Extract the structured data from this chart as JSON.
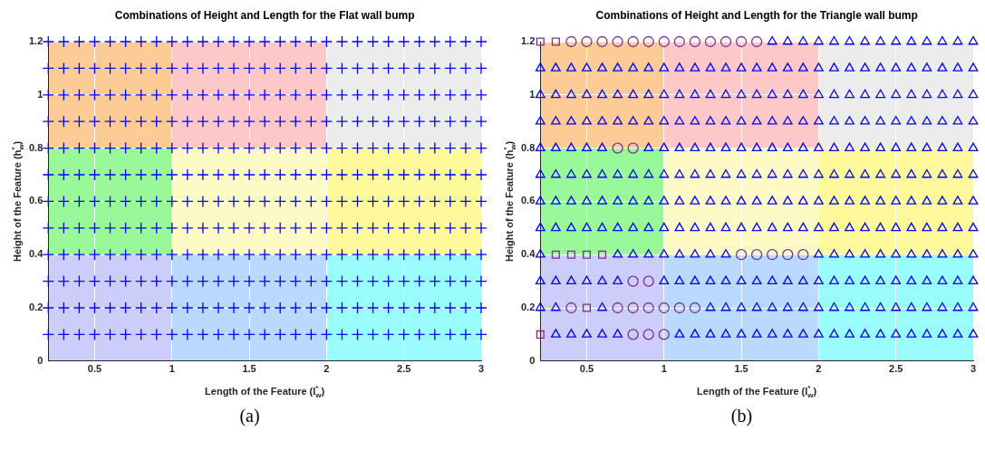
{
  "chart_data": [
    {
      "type": "scatter",
      "title": "Combinations of Height and Length for the Flat wall bump",
      "xlabel": "Length of the Feature (l$^{*}$$_{w}$)",
      "ylabel": "Height of the Feature (h$^{*}$$_{w}$)",
      "marker": "cross",
      "grid": true,
      "legend": false,
      "xlim": [
        0.2,
        3
      ],
      "xticks": [
        0.5,
        1,
        1.5,
        2,
        2.5,
        3
      ],
      "ylim": [
        0,
        1.2
      ],
      "yticks": [
        0,
        0.2,
        0.4,
        0.6,
        0.8,
        1,
        1.2
      ],
      "annotations": [
        "(a)"
      ],
      "x": [
        0.2,
        0.3,
        0.4,
        0.5,
        0.6,
        0.7,
        0.8,
        0.9,
        1,
        1.1,
        1.2,
        1.3,
        1.4,
        1.5,
        1.6,
        1.7,
        1.8,
        1.9,
        2,
        2.1,
        2.2,
        2.3,
        2.4,
        2.5,
        2.6,
        2.7,
        2.8,
        2.9,
        3
      ],
      "series": [
        {
          "color": "#0000ff",
          "values": [
            1.2,
            1.2,
            1.2,
            1.2,
            1.2,
            1.2,
            1.2,
            1.2,
            1.2,
            1.2,
            1.2,
            1.2,
            1.2,
            1.2,
            1.2,
            1.2,
            1.2,
            1.2,
            1.2,
            1.2,
            1.2,
            1.2,
            1.2,
            1.2,
            1.2,
            1.2,
            1.2,
            1.2,
            1.2
          ]
        },
        {
          "color": "#0000ff",
          "values": [
            1.1,
            1.1,
            1.1,
            1.1,
            1.1,
            1.1,
            1.1,
            1.1,
            1.1,
            1.1,
            1.1,
            1.1,
            1.1,
            1.1,
            1.1,
            1.1,
            1.1,
            1.1,
            1.1,
            1.1,
            1.1,
            1.1,
            1.1,
            1.1,
            1.1,
            1.1,
            1.1,
            1.1,
            1.1
          ]
        },
        {
          "color": "#0000ff",
          "values": [
            1,
            1,
            1,
            1,
            1,
            1,
            1,
            1,
            1,
            1,
            1,
            1,
            1,
            1,
            1,
            1,
            1,
            1,
            1,
            1,
            1,
            1,
            1,
            1,
            1,
            1,
            1,
            1,
            1
          ]
        },
        {
          "color": "#0000ff",
          "values": [
            0.9,
            0.9,
            0.9,
            0.9,
            0.9,
            0.9,
            0.9,
            0.9,
            0.9,
            0.9,
            0.9,
            0.9,
            0.9,
            0.9,
            0.9,
            0.9,
            0.9,
            0.9,
            0.9,
            0.9,
            0.9,
            0.9,
            0.9,
            0.9,
            0.9,
            0.9,
            0.9,
            0.9,
            0.9
          ]
        },
        {
          "color": "#0000ff",
          "values": [
            0.8,
            0.8,
            0.8,
            0.8,
            0.8,
            0.8,
            0.8,
            0.8,
            0.8,
            0.8,
            0.8,
            0.8,
            0.8,
            0.8,
            0.8,
            0.8,
            0.8,
            0.8,
            0.8,
            0.8,
            0.8,
            0.8,
            0.8,
            0.8,
            0.8,
            0.8,
            0.8,
            0.8,
            0.8
          ]
        },
        {
          "color": "#0000ff",
          "values": [
            0.7,
            0.7,
            0.7,
            0.7,
            0.7,
            0.7,
            0.7,
            0.7,
            0.7,
            0.7,
            0.7,
            0.7,
            0.7,
            0.7,
            0.7,
            0.7,
            0.7,
            0.7,
            0.7,
            0.7,
            0.7,
            0.7,
            0.7,
            0.7,
            0.7,
            0.7,
            0.7,
            0.7,
            0.7
          ]
        },
        {
          "color": "#0000ff",
          "values": [
            0.6,
            0.6,
            0.6,
            0.6,
            0.6,
            0.6,
            0.6,
            0.6,
            0.6,
            0.6,
            0.6,
            0.6,
            0.6,
            0.6,
            0.6,
            0.6,
            0.6,
            0.6,
            0.6,
            0.6,
            0.6,
            0.6,
            0.6,
            0.6,
            0.6,
            0.6,
            0.6,
            0.6,
            0.6
          ]
        },
        {
          "color": "#0000ff",
          "values": [
            0.5,
            0.5,
            0.5,
            0.5,
            0.5,
            0.5,
            0.5,
            0.5,
            0.5,
            0.5,
            0.5,
            0.5,
            0.5,
            0.5,
            0.5,
            0.5,
            0.5,
            0.5,
            0.5,
            0.5,
            0.5,
            0.5,
            0.5,
            0.5,
            0.5,
            0.5,
            0.5,
            0.5,
            0.5
          ]
        },
        {
          "color": "#0000ff",
          "values": [
            0.4,
            0.4,
            0.4,
            0.4,
            0.4,
            0.4,
            0.4,
            0.4,
            0.4,
            0.4,
            0.4,
            0.4,
            0.4,
            0.4,
            0.4,
            0.4,
            0.4,
            0.4,
            0.4,
            0.4,
            0.4,
            0.4,
            0.4,
            0.4,
            0.4,
            0.4,
            0.4,
            0.4,
            0.4
          ]
        },
        {
          "color": "#0000ff",
          "values": [
            0.3,
            0.3,
            0.3,
            0.3,
            0.3,
            0.3,
            0.3,
            0.3,
            0.3,
            0.3,
            0.3,
            0.3,
            0.3,
            0.3,
            0.3,
            0.3,
            0.3,
            0.3,
            0.3,
            0.3,
            0.3,
            0.3,
            0.3,
            0.3,
            0.3,
            0.3,
            0.3,
            0.3,
            0.3
          ]
        },
        {
          "color": "#0000ff",
          "values": [
            0.2,
            0.2,
            0.2,
            0.2,
            0.2,
            0.2,
            0.2,
            0.2,
            0.2,
            0.2,
            0.2,
            0.2,
            0.2,
            0.2,
            0.2,
            0.2,
            0.2,
            0.2,
            0.2,
            0.2,
            0.2,
            0.2,
            0.2,
            0.2,
            0.2,
            0.2,
            0.2,
            0.2,
            0.2
          ]
        },
        {
          "color": "#0000ff",
          "values": [
            0.1,
            0.1,
            0.1,
            0.1,
            0.1,
            0.1,
            0.1,
            0.1,
            0.1,
            0.1,
            0.1,
            0.1,
            0.1,
            0.1,
            0.1,
            0.1,
            0.1,
            0.1,
            0.1,
            0.1,
            0.1,
            0.1,
            0.1,
            0.1,
            0.1,
            0.1,
            0.1,
            0.1,
            0.1
          ]
        }
      ]
    },
    {
      "type": "scatter",
      "title": "Combinations of Height and Length for the Triangle wall bump",
      "xlabel": "Length of the Feature (l$^{*}$$_{w}$)",
      "ylabel": "Height of the Feature (h$^{*}$$_{w}$)",
      "grid": true,
      "legend": false,
      "xlim": [
        0.2,
        3
      ],
      "xticks": [
        0.5,
        1,
        1.5,
        2,
        2.5,
        3
      ],
      "ylim": [
        0,
        1.2
      ],
      "yticks": [
        0,
        0.2,
        0.4,
        0.6,
        0.8,
        1,
        1.2
      ],
      "annotations": [
        "(b)"
      ],
      "series": [
        {
          "color": "#0000ff",
          "marker": "triangle",
          "x": [
            1.7,
            1.8,
            1.9,
            2,
            2.1,
            2.2,
            2.3,
            2.4,
            2.5,
            2.6,
            2.7,
            2.8,
            2.9,
            3
          ],
          "values": [
            1.2,
            1.2,
            1.2,
            1.2,
            1.2,
            1.2,
            1.2,
            1.2,
            1.2,
            1.2,
            1.2,
            1.2,
            1.2,
            1.2
          ]
        },
        {
          "color": "#0000ff",
          "marker": "triangle",
          "x": [
            0.2,
            0.3,
            0.4,
            0.5,
            0.6,
            0.7,
            0.8,
            0.9,
            1,
            1.1,
            1.2,
            1.3,
            1.4,
            1.5,
            1.6,
            1.7,
            1.8,
            1.9,
            2,
            2.1,
            2.2,
            2.3,
            2.4,
            2.5,
            2.6,
            2.7,
            2.8,
            2.9,
            3
          ],
          "values": [
            1.1,
            1.1,
            1.1,
            1.1,
            1.1,
            1.1,
            1.1,
            1.1,
            1.1,
            1.1,
            1.1,
            1.1,
            1.1,
            1.1,
            1.1,
            1.1,
            1.1,
            1.1,
            1.1,
            1.1,
            1.1,
            1.1,
            1.1,
            1.1,
            1.1,
            1.1,
            1.1,
            1.1,
            1.1
          ]
        },
        {
          "color": "#0000ff",
          "marker": "triangle",
          "x": [
            0.2,
            0.3,
            0.4,
            0.5,
            0.6,
            0.7,
            0.8,
            0.9,
            1,
            1.1,
            1.2,
            1.3,
            1.4,
            1.5,
            1.6,
            1.7,
            1.8,
            1.9,
            2,
            2.1,
            2.2,
            2.3,
            2.4,
            2.5,
            2.6,
            2.7,
            2.8,
            2.9,
            3
          ],
          "values": [
            1,
            1,
            1,
            1,
            1,
            1,
            1,
            1,
            1,
            1,
            1,
            1,
            1,
            1,
            1,
            1,
            1,
            1,
            1,
            1,
            1,
            1,
            1,
            1,
            1,
            1,
            1,
            1,
            1
          ]
        },
        {
          "color": "#0000ff",
          "marker": "triangle",
          "x": [
            0.2,
            0.3,
            0.4,
            0.5,
            0.6,
            0.7,
            0.8,
            0.9,
            1,
            1.1,
            1.2,
            1.3,
            1.4,
            1.5,
            1.6,
            1.7,
            1.8,
            1.9,
            2,
            2.1,
            2.2,
            2.3,
            2.4,
            2.5,
            2.6,
            2.7,
            2.8,
            2.9,
            3
          ],
          "values": [
            0.9,
            0.9,
            0.9,
            0.9,
            0.9,
            0.9,
            0.9,
            0.9,
            0.9,
            0.9,
            0.9,
            0.9,
            0.9,
            0.9,
            0.9,
            0.9,
            0.9,
            0.9,
            0.9,
            0.9,
            0.9,
            0.9,
            0.9,
            0.9,
            0.9,
            0.9,
            0.9,
            0.9,
            0.9
          ]
        },
        {
          "color": "#0000ff",
          "marker": "triangle",
          "x": [
            0.2,
            0.3,
            0.4,
            0.5,
            0.6,
            0.9,
            1,
            1.1,
            1.2,
            1.3,
            1.4,
            1.5,
            1.6,
            1.7,
            1.8,
            1.9,
            2,
            2.1,
            2.2,
            2.3,
            2.4,
            2.5,
            2.6,
            2.7,
            2.8,
            2.9,
            3
          ],
          "values": [
            0.8,
            0.8,
            0.8,
            0.8,
            0.8,
            0.8,
            0.8,
            0.8,
            0.8,
            0.8,
            0.8,
            0.8,
            0.8,
            0.8,
            0.8,
            0.8,
            0.8,
            0.8,
            0.8,
            0.8,
            0.8,
            0.8,
            0.8,
            0.8,
            0.8,
            0.8,
            0.8
          ]
        },
        {
          "color": "#0000ff",
          "marker": "triangle",
          "x": [
            0.2,
            0.3,
            0.4,
            0.5,
            0.6,
            0.7,
            0.8,
            0.9,
            1,
            1.1,
            1.2,
            1.3,
            1.4,
            1.5,
            1.6,
            1.7,
            1.8,
            1.9,
            2,
            2.1,
            2.2,
            2.3,
            2.4,
            2.5,
            2.6,
            2.7,
            2.8,
            2.9,
            3
          ],
          "values": [
            0.7,
            0.7,
            0.7,
            0.7,
            0.7,
            0.7,
            0.7,
            0.7,
            0.7,
            0.7,
            0.7,
            0.7,
            0.7,
            0.7,
            0.7,
            0.7,
            0.7,
            0.7,
            0.7,
            0.7,
            0.7,
            0.7,
            0.7,
            0.7,
            0.7,
            0.7,
            0.7,
            0.7,
            0.7
          ]
        },
        {
          "color": "#0000ff",
          "marker": "triangle",
          "x": [
            0.2,
            0.3,
            0.4,
            0.5,
            0.6,
            0.7,
            0.8,
            0.9,
            1,
            1.1,
            1.2,
            1.3,
            1.4,
            1.5,
            1.6,
            1.7,
            1.8,
            1.9,
            2,
            2.1,
            2.2,
            2.3,
            2.4,
            2.5,
            2.6,
            2.7,
            2.8,
            2.9,
            3
          ],
          "values": [
            0.6,
            0.6,
            0.6,
            0.6,
            0.6,
            0.6,
            0.6,
            0.6,
            0.6,
            0.6,
            0.6,
            0.6,
            0.6,
            0.6,
            0.6,
            0.6,
            0.6,
            0.6,
            0.6,
            0.6,
            0.6,
            0.6,
            0.6,
            0.6,
            0.6,
            0.6,
            0.6,
            0.6,
            0.6
          ]
        },
        {
          "color": "#0000ff",
          "marker": "triangle",
          "x": [
            0.2,
            0.3,
            0.4,
            0.5,
            0.6,
            0.7,
            0.8,
            0.9,
            1,
            1.1,
            1.2,
            1.3,
            1.4,
            1.5,
            1.6,
            1.7,
            1.8,
            1.9,
            2,
            2.1,
            2.2,
            2.3,
            2.4,
            2.5,
            2.6,
            2.7,
            2.8,
            2.9,
            3
          ],
          "values": [
            0.5,
            0.5,
            0.5,
            0.5,
            0.5,
            0.5,
            0.5,
            0.5,
            0.5,
            0.5,
            0.5,
            0.5,
            0.5,
            0.5,
            0.5,
            0.5,
            0.5,
            0.5,
            0.5,
            0.5,
            0.5,
            0.5,
            0.5,
            0.5,
            0.5,
            0.5,
            0.5,
            0.5,
            0.5
          ]
        },
        {
          "color": "#0000ff",
          "marker": "triangle",
          "x": [
            0.2,
            0.7,
            0.8,
            0.9,
            1,
            1.1,
            1.2,
            1.3,
            1.4,
            2,
            2.1,
            2.2,
            2.3,
            2.4,
            2.5,
            2.6,
            2.7,
            2.8,
            2.9,
            3
          ],
          "values": [
            0.4,
            0.4,
            0.4,
            0.4,
            0.4,
            0.4,
            0.4,
            0.4,
            0.4,
            0.4,
            0.4,
            0.4,
            0.4,
            0.4,
            0.4,
            0.4,
            0.4,
            0.4,
            0.4,
            0.4
          ]
        },
        {
          "color": "#0000ff",
          "marker": "triangle",
          "x": [
            0.2,
            0.3,
            0.4,
            0.5,
            0.6,
            0.7,
            1,
            1.1,
            1.2,
            1.3,
            1.4,
            1.5,
            1.6,
            1.7,
            1.8,
            1.9,
            2,
            2.1,
            2.2,
            2.3,
            2.4,
            2.5,
            2.6,
            2.7,
            2.8,
            2.9,
            3
          ],
          "values": [
            0.3,
            0.3,
            0.3,
            0.3,
            0.3,
            0.3,
            0.3,
            0.3,
            0.3,
            0.3,
            0.3,
            0.3,
            0.3,
            0.3,
            0.3,
            0.3,
            0.3,
            0.3,
            0.3,
            0.3,
            0.3,
            0.3,
            0.3,
            0.3,
            0.3,
            0.3,
            0.3
          ]
        },
        {
          "color": "#0000ff",
          "marker": "triangle",
          "x": [
            0.2,
            0.3,
            0.6,
            1.3,
            1.4,
            1.5,
            1.6,
            1.7,
            1.8,
            1.9,
            2,
            2.1,
            2.2,
            2.3,
            2.4,
            2.5,
            2.6,
            2.7,
            2.8,
            2.9,
            3
          ],
          "values": [
            0.2,
            0.2,
            0.2,
            0.2,
            0.2,
            0.2,
            0.2,
            0.2,
            0.2,
            0.2,
            0.2,
            0.2,
            0.2,
            0.2,
            0.2,
            0.2,
            0.2,
            0.2,
            0.2,
            0.2,
            0.2
          ]
        },
        {
          "color": "#0000ff",
          "marker": "triangle",
          "x": [
            0.3,
            0.4,
            0.5,
            0.6,
            0.7,
            1.1,
            1.2,
            1.3,
            1.4,
            1.5,
            1.6,
            1.7,
            1.8,
            1.9,
            2,
            2.1,
            2.2,
            2.3,
            2.4,
            2.5,
            2.6,
            2.7,
            2.8,
            2.9,
            3
          ],
          "values": [
            0.1,
            0.1,
            0.1,
            0.1,
            0.1,
            0.1,
            0.1,
            0.1,
            0.1,
            0.1,
            0.1,
            0.1,
            0.1,
            0.1,
            0.1,
            0.1,
            0.1,
            0.1,
            0.1,
            0.1,
            0.1,
            0.1,
            0.1,
            0.1,
            0.1
          ]
        },
        {
          "color": "#7e2f8e",
          "marker": "circle",
          "x": [
            0.4,
            0.5,
            0.6,
            0.7,
            0.8,
            0.9,
            1,
            1.1,
            1.2,
            1.3,
            1.4,
            1.5,
            1.6,
            0.7,
            0.8,
            1.5,
            1.6,
            1.7,
            1.8,
            1.9,
            0.8,
            0.9,
            0.4,
            0.7,
            0.8,
            0.9,
            1,
            1.1,
            1.2,
            0.8,
            0.9,
            1
          ],
          "values": [
            1.2,
            1.2,
            1.2,
            1.2,
            1.2,
            1.2,
            1.2,
            1.2,
            1.2,
            1.2,
            1.2,
            1.2,
            1.2,
            0.8,
            0.8,
            0.4,
            0.4,
            0.4,
            0.4,
            0.4,
            0.3,
            0.3,
            0.2,
            0.2,
            0.2,
            0.2,
            0.2,
            0.2,
            0.2,
            0.1,
            0.1,
            0.1
          ]
        },
        {
          "color": "#7e2f8e",
          "marker": "square",
          "x": [
            0.2,
            0.3,
            0.3,
            0.4,
            0.5,
            0.6,
            0.5,
            0.2
          ],
          "values": [
            1.2,
            1.2,
            0.4,
            0.4,
            0.4,
            0.4,
            0.2,
            0.1
          ]
        }
      ]
    }
  ]
}
